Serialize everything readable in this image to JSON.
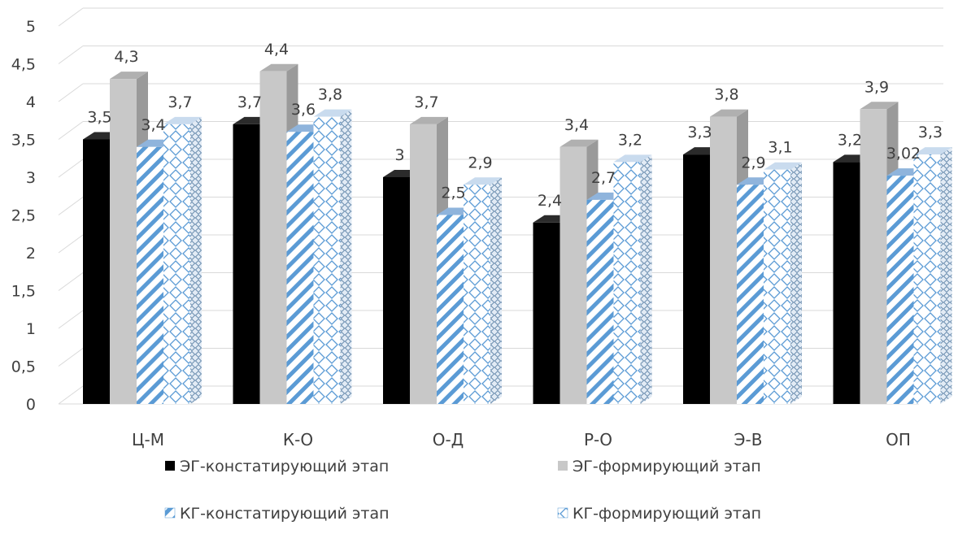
{
  "chart_data": {
    "type": "bar",
    "categories": [
      "Ц-М",
      "К-О",
      "О-Д",
      "Р-О",
      "Э-В",
      "ОП"
    ],
    "series": [
      {
        "name": "ЭГ-констатирующий этап",
        "values": [
          3.5,
          3.7,
          3,
          2.4,
          3.3,
          3.2
        ],
        "labels": [
          "3,5",
          "3,7",
          "3",
          "2,4",
          "3,3",
          "3,2"
        ],
        "color": "#000000",
        "pattern": "solid"
      },
      {
        "name": "ЭГ-формирующий этап",
        "values": [
          4.3,
          4.4,
          3.7,
          3.4,
          3.8,
          3.9
        ],
        "labels": [
          "4,3",
          "4,4",
          "3,7",
          "3,4",
          "3,8",
          "3,9"
        ],
        "color": "#c8c8c8",
        "pattern": "solid"
      },
      {
        "name": "КГ-констатирующий этап",
        "values": [
          3.4,
          3.6,
          2.5,
          2.7,
          2.9,
          3.02
        ],
        "labels": [
          "3,4",
          "3,6",
          "2,5",
          "2,7",
          "2,9",
          "3,02"
        ],
        "color": "#5b9bd5",
        "pattern": "diagonal-stripes"
      },
      {
        "name": "КГ-формирующий этап",
        "values": [
          3.7,
          3.8,
          2.9,
          3.2,
          3.1,
          3.3
        ],
        "labels": [
          "3,7",
          "3,8",
          "2,9",
          "3,2",
          "3,1",
          "3,3"
        ],
        "color": "#5b9bd5",
        "pattern": "diamond-grid"
      }
    ],
    "ylim": [
      0,
      5
    ],
    "yticks": [
      0,
      0.5,
      1,
      1.5,
      2,
      2.5,
      3,
      3.5,
      4,
      4.5,
      5
    ],
    "ytick_labels": [
      "0",
      "0,5",
      "1",
      "1,5",
      "2",
      "2,5",
      "3",
      "3,5",
      "4",
      "4,5",
      "5"
    ],
    "grid": true,
    "style": "3d-clustered-columns",
    "legend_position": "bottom"
  }
}
